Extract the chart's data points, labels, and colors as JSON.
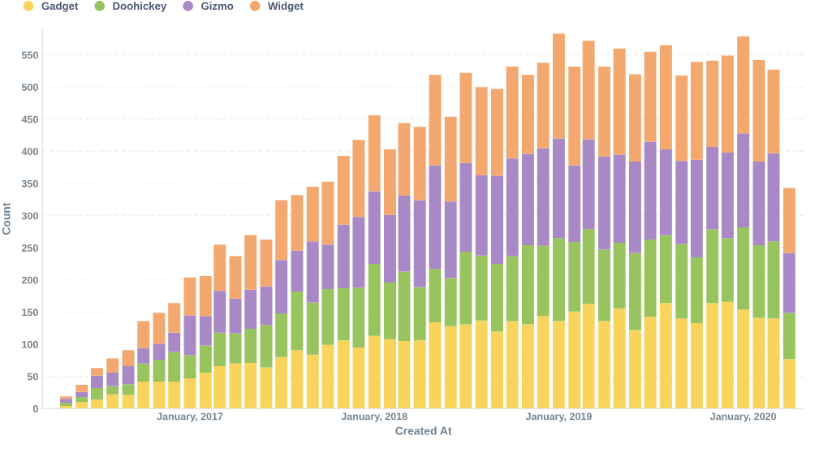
{
  "chart_data": {
    "type": "bar",
    "stacked": true,
    "xlabel": "Created At",
    "ylabel": "Count",
    "x": [
      "2016-05",
      "2016-06",
      "2016-07",
      "2016-08",
      "2016-09",
      "2016-10",
      "2016-11",
      "2016-12",
      "2017-01",
      "2017-02",
      "2017-03",
      "2017-04",
      "2017-05",
      "2017-06",
      "2017-07",
      "2017-08",
      "2017-09",
      "2017-10",
      "2017-11",
      "2017-12",
      "2018-01",
      "2018-02",
      "2018-03",
      "2018-04",
      "2018-05",
      "2018-06",
      "2018-07",
      "2018-08",
      "2018-09",
      "2018-10",
      "2018-11",
      "2018-12",
      "2019-01",
      "2019-02",
      "2019-03",
      "2019-04",
      "2019-05",
      "2019-06",
      "2019-07",
      "2019-08",
      "2019-09",
      "2019-10",
      "2019-11",
      "2019-12",
      "2020-01",
      "2020-02",
      "2020-03",
      "2020-04"
    ],
    "series": [
      {
        "name": "Gadget",
        "color": "#f9d45c",
        "values": [
          4,
          10,
          14,
          22,
          21,
          42,
          42,
          42,
          47,
          56,
          66,
          70,
          71,
          64,
          80,
          91,
          84,
          99,
          106,
          95,
          113,
          108,
          105,
          106,
          134,
          128,
          131,
          137,
          120,
          136,
          131,
          144,
          136,
          151,
          163,
          136,
          156,
          122,
          143,
          164,
          140,
          133,
          164,
          166,
          154,
          141,
          140,
          77
        ]
      },
      {
        "name": "Doohickey",
        "color": "#98c35e",
        "values": [
          5,
          8,
          18,
          13,
          17,
          28,
          34,
          46,
          36,
          42,
          52,
          47,
          53,
          66,
          68,
          91,
          81,
          87,
          81,
          93,
          112,
          88,
          108,
          83,
          83,
          75,
          113,
          101,
          105,
          101,
          123,
          109,
          129,
          108,
          116,
          111,
          102,
          120,
          120,
          106,
          116,
          102,
          115,
          99,
          128,
          113,
          120,
          72
        ]
      },
      {
        "name": "Gizmo",
        "color": "#a989c5",
        "values": [
          6,
          8,
          19,
          21,
          28,
          24,
          25,
          30,
          62,
          46,
          65,
          54,
          61,
          60,
          83,
          64,
          95,
          69,
          99,
          110,
          113,
          105,
          118,
          135,
          161,
          119,
          138,
          125,
          137,
          152,
          142,
          152,
          155,
          119,
          140,
          145,
          137,
          142,
          152,
          133,
          129,
          152,
          128,
          133,
          146,
          130,
          137,
          93
        ]
      },
      {
        "name": "Widget",
        "color": "#f2a86f",
        "values": [
          4,
          11,
          12,
          22,
          25,
          42,
          48,
          46,
          59,
          62,
          72,
          66,
          85,
          73,
          93,
          86,
          85,
          98,
          107,
          120,
          118,
          102,
          113,
          114,
          141,
          132,
          140,
          137,
          135,
          143,
          123,
          133,
          163,
          154,
          153,
          140,
          165,
          136,
          140,
          162,
          133,
          152,
          134,
          151,
          151,
          158,
          130,
          101
        ]
      }
    ],
    "xlim": [
      "2016-03-15",
      "2020-05-01"
    ],
    "xticks": [
      {
        "value": "2017-01",
        "label": "January, 2017"
      },
      {
        "value": "2018-01",
        "label": "January, 2018"
      },
      {
        "value": "2019-01",
        "label": "January, 2019"
      },
      {
        "value": "2020-01",
        "label": "January, 2020"
      }
    ],
    "ylim": [
      0,
      590
    ],
    "yticks": [
      0,
      50,
      100,
      150,
      200,
      250,
      300,
      350,
      400,
      450,
      500,
      550
    ],
    "grid": "y",
    "legend": "top left"
  }
}
